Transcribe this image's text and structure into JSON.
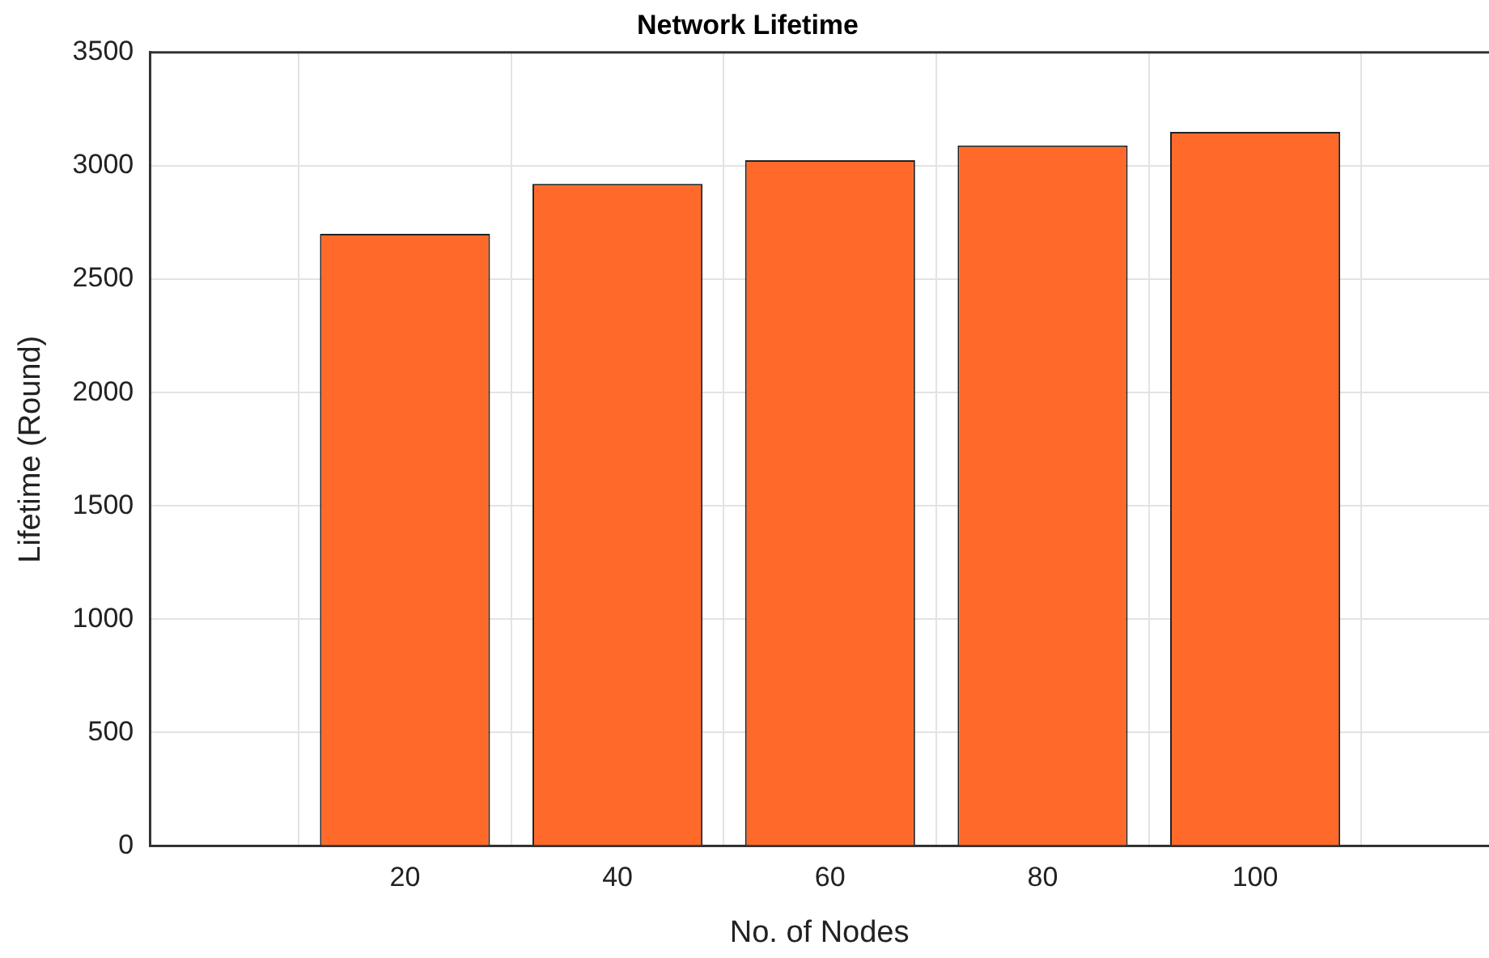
{
  "chart_data": {
    "type": "bar",
    "title": "Network Lifetime",
    "xlabel": "No. of Nodes",
    "ylabel": "Lifetime (Round)",
    "x": [
      20,
      40,
      60,
      80,
      100
    ],
    "values": [
      2700,
      2920,
      3025,
      3090,
      3150
    ],
    "color": "#ff6a2b",
    "xlim": [
      -4,
      122
    ],
    "xticks": [
      20,
      40,
      60,
      80,
      100
    ],
    "ylim": [
      0,
      3500
    ],
    "yticks": [
      0,
      500,
      1000,
      1500,
      2000,
      2500,
      3000,
      3500
    ],
    "grid": true,
    "legend": false
  }
}
